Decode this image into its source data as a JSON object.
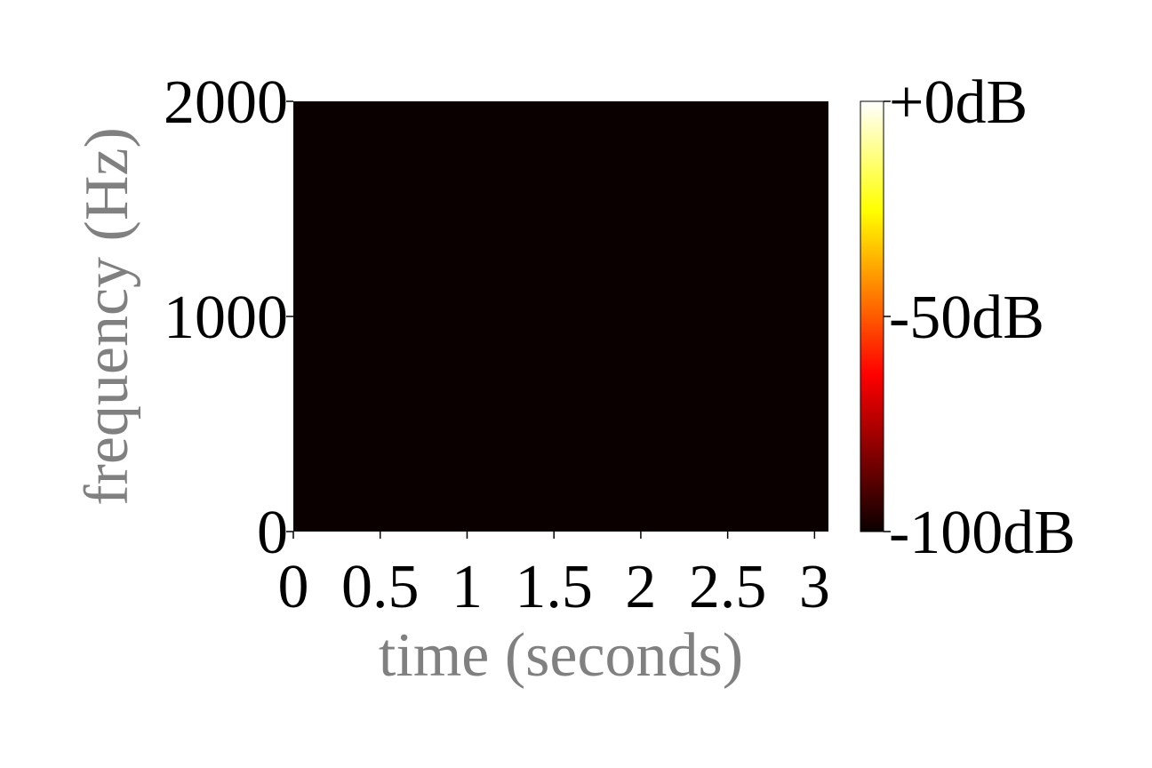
{
  "chart_data": {
    "type": "heatmap",
    "title": "",
    "xlabel": "time (seconds)",
    "ylabel": "frequency (Hz)",
    "xlim": [
      0,
      3.08
    ],
    "ylim": [
      0,
      2000
    ],
    "x_ticks": [
      0,
      0.5,
      1,
      1.5,
      2,
      2.5,
      3
    ],
    "x_tick_labels": [
      "0",
      "0.5",
      "1",
      "1.5",
      "2",
      "2.5",
      "3"
    ],
    "y_ticks": [
      0,
      1000,
      2000
    ],
    "y_tick_labels": [
      "0",
      "1000",
      "2000"
    ],
    "values_db": [
      [
        -100
      ]
    ],
    "colorbar": {
      "colormap": "hot",
      "range_db": [
        -100,
        0
      ],
      "ticks": [
        0,
        -50,
        -100
      ],
      "tick_labels": [
        "+0dB",
        "-50dB",
        "-100dB"
      ]
    },
    "label_color": "#808080",
    "fill_color": "#0b0000",
    "grid": false
  }
}
